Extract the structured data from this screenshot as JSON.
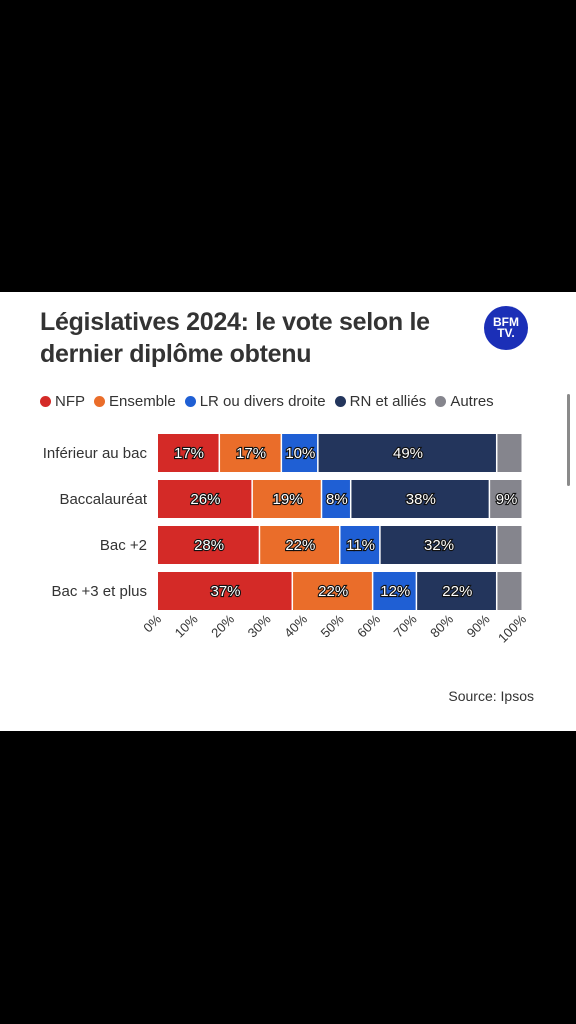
{
  "title": "Législatives 2024: le vote selon le\ndernier diplôme obtenu",
  "logo": {
    "line1": "BFM",
    "line2": "TV."
  },
  "source": "Source: Ipsos",
  "colors": {
    "NFP": "#d42a27",
    "Ensemble": "#ea6d2a",
    "LR": "#1f5fd4",
    "RN": "#23355c",
    "Autres": "#85858d"
  },
  "chart_data": {
    "type": "bar",
    "orientation": "horizontal",
    "stacked": true,
    "title": "Législatives 2024: le vote selon le dernier diplôme obtenu",
    "categories": [
      "Inférieur au bac",
      "Baccalauréat",
      "Bac +2",
      "Bac +3 et plus"
    ],
    "series": [
      {
        "name": "NFP",
        "color": "#d42a27",
        "values": [
          17,
          26,
          28,
          37
        ]
      },
      {
        "name": "Ensemble",
        "color": "#ea6d2a",
        "values": [
          17,
          19,
          22,
          22
        ]
      },
      {
        "name": "LR ou divers droite",
        "color": "#1f5fd4",
        "values": [
          10,
          8,
          11,
          12
        ]
      },
      {
        "name": "RN et alliés",
        "color": "#23355c",
        "values": [
          49,
          38,
          32,
          22
        ]
      },
      {
        "name": "Autres",
        "color": "#85858d",
        "values": [
          7,
          9,
          7,
          7
        ]
      }
    ],
    "data_labels": [
      [
        "17%",
        "17%",
        "10%",
        "49%",
        ""
      ],
      [
        "26%",
        "19%",
        "8%",
        "38%",
        "9%"
      ],
      [
        "28%",
        "22%",
        "11%",
        "32%",
        ""
      ],
      [
        "37%",
        "22%",
        "12%",
        "22%",
        ""
      ]
    ],
    "xlim": [
      0,
      100
    ],
    "x_ticks": [
      "0%",
      "10%",
      "20%",
      "30%",
      "40%",
      "50%",
      "60%",
      "70%",
      "80%",
      "90%",
      "100%"
    ],
    "legend_position": "top",
    "grid": false
  }
}
